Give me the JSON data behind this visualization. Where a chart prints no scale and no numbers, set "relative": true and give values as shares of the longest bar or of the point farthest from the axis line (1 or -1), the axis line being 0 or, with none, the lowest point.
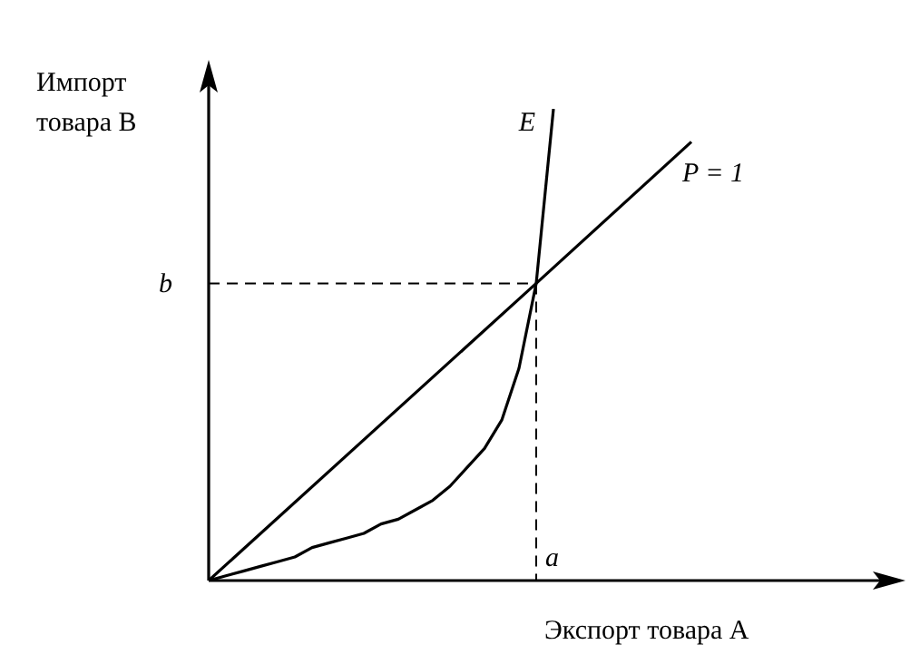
{
  "chart_data": {
    "type": "line",
    "relative": true,
    "xlabel": "Экспорт товара A",
    "ylabel": "Импорт товара B",
    "legend": false,
    "marker": "none",
    "categories": [
      null,
      null,
      null,
      null,
      null,
      null,
      null,
      null,
      null,
      null,
      null,
      null,
      null,
      null,
      null,
      null,
      null,
      null,
      null,
      null,
      null,
      null,
      null,
      null,
      null,
      null,
      null,
      null,
      null,
      null,
      null,
      null,
      null,
      null,
      null,
      null,
      null,
      null,
      null,
      null,
      null
    ],
    "series": [
      {
        "name": "E",
        "color": "#000000",
        "values": [
          0,
          0.01,
          0.02,
          0.03,
          0.04,
          0.05,
          0.07,
          0.08,
          0.09,
          0.1,
          0.12,
          0.13,
          0.15,
          0.17,
          0.2,
          0.24,
          0.28,
          0.34,
          0.45,
          0.63,
          1,
          null,
          null,
          null,
          null,
          null,
          null,
          null,
          null,
          null,
          null,
          null,
          null,
          null,
          null,
          null,
          null,
          null,
          null,
          null,
          null
        ]
      },
      {
        "name": "P = 1",
        "color": "#000000",
        "values": [
          0,
          null,
          null,
          null,
          null,
          null,
          null,
          null,
          null,
          null,
          null,
          null,
          null,
          null,
          null,
          null,
          null,
          null,
          null,
          0.63,
          null,
          null,
          null,
          null,
          null,
          null,
          null,
          null,
          0.93,
          null,
          null,
          null,
          null,
          null,
          null,
          null,
          null,
          null,
          null,
          null,
          null
        ]
      }
    ],
    "ref_lines": [
      {
        "axis": "y",
        "value": 0.63,
        "label": "b",
        "line_style": "dashed"
      }
    ],
    "annotations": [
      "a"
    ]
  }
}
